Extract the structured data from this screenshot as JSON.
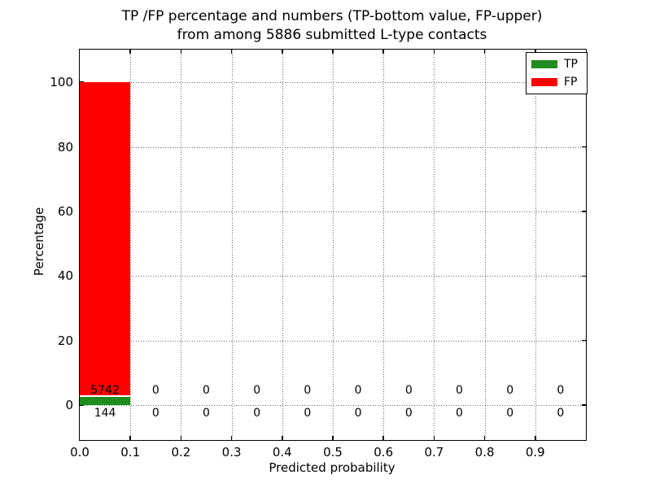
{
  "title": {
    "line1": "TP /FP percentage and numbers (TP-bottom value, FP-upper)",
    "line2": "from among 5886 submitted L-type contacts"
  },
  "axes": {
    "xlabel": "Predicted probability",
    "ylabel": "Percentage"
  },
  "legend": {
    "items": [
      {
        "label": "TP",
        "color": "#1e8c1e"
      },
      {
        "label": "FP",
        "color": "#ff0000"
      }
    ]
  },
  "chart_data": {
    "type": "bar",
    "stacked": true,
    "title": "TP /FP percentage and numbers (TP-bottom value, FP-upper) from among 5886 submitted L-type contacts",
    "xlabel": "Predicted probability",
    "ylabel": "Percentage",
    "total_contacts": 5886,
    "bin_width": 0.1,
    "bin_starts": [
      0.0,
      0.1,
      0.2,
      0.3,
      0.4,
      0.5,
      0.6,
      0.7,
      0.8,
      0.9
    ],
    "series": [
      {
        "name": "TP",
        "color": "#1e8c1e",
        "counts": [
          144,
          0,
          0,
          0,
          0,
          0,
          0,
          0,
          0,
          0
        ]
      },
      {
        "name": "FP",
        "color": "#ff0000",
        "counts": [
          5742,
          0,
          0,
          0,
          0,
          0,
          0,
          0,
          0,
          0
        ]
      }
    ],
    "xticks": [
      "0.0",
      "0.1",
      "0.2",
      "0.3",
      "0.4",
      "0.5",
      "0.6",
      "0.7",
      "0.8",
      "0.9"
    ],
    "yticks": [
      "0",
      "20",
      "40",
      "60",
      "80",
      "100"
    ],
    "xlim": [
      0.0,
      1.0
    ],
    "ylim": [
      -10.8,
      110.1
    ],
    "grid": "dotted",
    "legend_position": "upper right"
  }
}
